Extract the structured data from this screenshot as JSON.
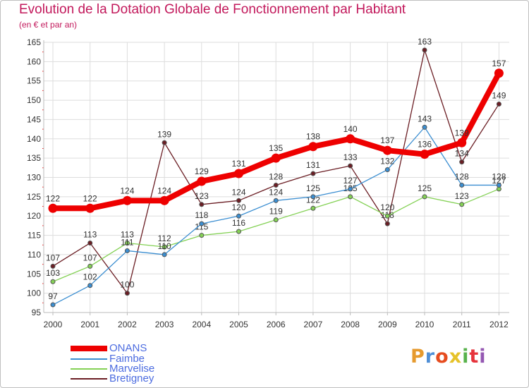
{
  "title": "Evolution de la Dotation Globale de Fonctionnement par Habitant",
  "subtitle": "(en € et par an)",
  "logo": {
    "text": "Proxiti",
    "colors": [
      "#e69a2e",
      "#4f8fd6",
      "#e64c1f",
      "#e6c229",
      "#58b24c",
      "#e6343c",
      "#9457b2"
    ]
  },
  "colors": {
    "onans": "#ee0000",
    "faimbe": "#3b8ed1",
    "marvelise": "#84d155",
    "bretigney": "#6b1e24",
    "axis": "#bbbbbb",
    "grid": "#dddddd",
    "frame": "#bfbfbf",
    "tick_text": "#333333",
    "legend_text": "#4c6ce0",
    "title": "#c2185b"
  },
  "chart_data": {
    "type": "line",
    "title": "Evolution de la Dotation Globale de Fonctionnement par Habitant",
    "subtitle": "(en € et par an)",
    "categories": [
      "2000",
      "2001",
      "2002",
      "2003",
      "2004",
      "2005",
      "2006",
      "2007",
      "2008",
      "2009",
      "2010",
      "2011",
      "2012"
    ],
    "ylim": [
      95,
      165
    ],
    "yticks": [
      95,
      100,
      105,
      110,
      115,
      120,
      125,
      130,
      135,
      140,
      145,
      150,
      155,
      160,
      165
    ],
    "grid": true,
    "legend_position": "bottom-left",
    "series": [
      {
        "key": "bretigney",
        "name": "Bretigney",
        "values": [
          107,
          113,
          100,
          139,
          123,
          124,
          128,
          131,
          133,
          118,
          163,
          134,
          149
        ]
      },
      {
        "key": "marvelise",
        "name": "Marvelise",
        "values": [
          103,
          107,
          113,
          112,
          115,
          116,
          119,
          122,
          125,
          120,
          125,
          123,
          127
        ]
      },
      {
        "key": "faimbe",
        "name": "Faimbe",
        "values": [
          97,
          102,
          111,
          110,
          118,
          120,
          124,
          125,
          127,
          132,
          143,
          128,
          128
        ]
      },
      {
        "key": "onans",
        "name": "ONANS",
        "values": [
          122,
          122,
          124,
          124,
          129,
          131,
          135,
          138,
          140,
          137,
          136,
          139,
          157
        ]
      }
    ],
    "legend": [
      {
        "key": "onans",
        "label": "ONANS"
      },
      {
        "key": "faimbe",
        "label": "Faimbe"
      },
      {
        "key": "marvelise",
        "label": "Marvelise"
      },
      {
        "key": "bretigney",
        "label": "Bretigney"
      }
    ]
  }
}
